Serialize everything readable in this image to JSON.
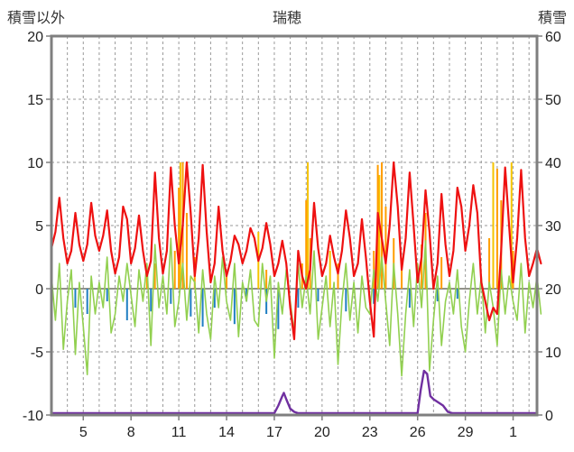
{
  "header": {
    "left_axis_title": "積雪以外",
    "title": "瑞穂",
    "right_axis_title": "積雪"
  },
  "chart_data": {
    "type": "line",
    "title": "瑞穂",
    "grid": true,
    "legend": "none",
    "left_axis": {
      "label": "積雪以外",
      "min": -10,
      "max": 20,
      "ticks": [
        20,
        15,
        10,
        5,
        0,
        -5,
        -10
      ]
    },
    "right_axis": {
      "label": "積雪",
      "min": 0,
      "max": 60,
      "ticks": [
        60,
        50,
        40,
        30,
        20,
        10,
        0
      ]
    },
    "x_axis": {
      "min": 3,
      "max": 33.5,
      "tick_positions": [
        5,
        8,
        11,
        14,
        17,
        20,
        23,
        26,
        29,
        32
      ],
      "tick_labels": [
        "5",
        "8",
        "11",
        "14",
        "17",
        "20",
        "23",
        "26",
        "29",
        "1"
      ],
      "day_gridline_step": 1
    },
    "frame_color": "#7f7f7f",
    "gridline_color": "#9a9a9a",
    "zero_line_color": "#6e6e64",
    "series": [
      {
        "name": "yellow-bars",
        "type": "bar",
        "axis": "left",
        "color": "#f5c400",
        "points": [
          [
            11.1,
            10.0
          ],
          [
            16.0,
            4.5
          ],
          [
            19.1,
            10.0
          ],
          [
            20.5,
            3.0
          ],
          [
            23.6,
            9.0
          ],
          [
            30.75,
            10.0
          ],
          [
            31.9,
            10.0
          ]
        ]
      },
      {
        "name": "orange-bars",
        "type": "bar",
        "axis": "left",
        "color": "#ff9d00",
        "points": [
          [
            9.0,
            1.5
          ],
          [
            9.5,
            2.0
          ],
          [
            10.75,
            3.0
          ],
          [
            11.0,
            8.0
          ],
          [
            11.25,
            10.0
          ],
          [
            11.5,
            6.0
          ],
          [
            12.0,
            2.5
          ],
          [
            14.0,
            1.0
          ],
          [
            16.5,
            1.5
          ],
          [
            18.75,
            2.0
          ],
          [
            19.0,
            7.0
          ],
          [
            19.25,
            4.0
          ],
          [
            21.0,
            2.0
          ],
          [
            23.25,
            3.0
          ],
          [
            23.5,
            9.8
          ],
          [
            23.75,
            10.0
          ],
          [
            24.0,
            6.5
          ],
          [
            24.5,
            4.0
          ],
          [
            25.0,
            2.0
          ],
          [
            26.25,
            3.5
          ],
          [
            26.5,
            6.0
          ],
          [
            27.5,
            2.5
          ],
          [
            30.5,
            4.0
          ],
          [
            31.0,
            9.5
          ],
          [
            31.25,
            7.0
          ],
          [
            32.0,
            3.0
          ]
        ]
      },
      {
        "name": "blue-bars",
        "type": "bar",
        "axis": "left",
        "color": "#1f7ec2",
        "points": [
          [
            4.5,
            -1.5
          ],
          [
            5.25,
            -2.0
          ],
          [
            6.5,
            -1.0
          ],
          [
            7.75,
            -2.5
          ],
          [
            9.25,
            -1.8
          ],
          [
            10.5,
            -1.2
          ],
          [
            11.75,
            -2.2
          ],
          [
            12.5,
            -3.0
          ],
          [
            13.25,
            -1.5
          ],
          [
            14.5,
            -2.8
          ],
          [
            15.25,
            -1.0
          ],
          [
            16.5,
            -2.0
          ],
          [
            17.25,
            -3.2
          ],
          [
            18.5,
            -1.5
          ],
          [
            19.75,
            -1.0
          ],
          [
            21.5,
            -1.8
          ],
          [
            23.25,
            -1.2
          ],
          [
            25.5,
            -1.5
          ],
          [
            27.25,
            -1.0
          ],
          [
            28.5,
            -0.8
          ]
        ]
      },
      {
        "name": "green-line",
        "type": "line",
        "axis": "left",
        "color": "#92d050",
        "width": 1.6,
        "x0": 3,
        "dx": 0.25,
        "values": [
          1.0,
          -2.5,
          2.0,
          -4.8,
          -1.0,
          1.5,
          -5.2,
          0.5,
          -3.0,
          -6.8,
          1.0,
          -2.0,
          0.5,
          -1.5,
          2.5,
          -3.5,
          -2.0,
          1.0,
          -1.0,
          2.0,
          -0.5,
          -3.0,
          1.5,
          -1.0,
          2.0,
          -4.5,
          3.5,
          -1.5,
          1.0,
          -2.0,
          4.0,
          -3.0,
          -1.0,
          2.0,
          -2.5,
          1.0,
          0.5,
          -3.5,
          1.5,
          -2.0,
          -4.0,
          1.0,
          -1.5,
          2.5,
          -1.0,
          -2.5,
          2.0,
          -3.8,
          0.5,
          -1.0,
          1.5,
          -2.5,
          -3.0,
          2.0,
          -1.0,
          1.0,
          -5.5,
          0.5,
          -2.0,
          1.5,
          -1.0,
          -3.5,
          2.0,
          -1.5,
          1.0,
          -2.0,
          3.0,
          -4.0,
          -1.5,
          1.0,
          -3.0,
          0.5,
          -6.0,
          -1.0,
          2.0,
          -2.5,
          0.5,
          -3.5,
          1.0,
          -1.5,
          -2.0,
          1.5,
          -1.0,
          2.5,
          -1.0,
          -4.5,
          2.0,
          -2.0,
          -6.9,
          -2.0,
          1.5,
          -3.0,
          2.0,
          -1.5,
          3.8,
          -6.5,
          -2.5,
          1.0,
          -4.5,
          -1.0,
          0.5,
          -2.0,
          1.5,
          -3.0,
          -5.0,
          -1.0,
          2.0,
          -2.0,
          1.0,
          -3.5,
          0.5,
          -1.5,
          -4.5,
          1.5,
          -2.0,
          1.0,
          -1.0,
          -2.5,
          2.0,
          -3.5,
          0.5,
          -1.5,
          1.0,
          -2.0
        ]
      },
      {
        "name": "red-line",
        "type": "line",
        "axis": "left",
        "color": "#ee1111",
        "width": 2.2,
        "x0": 3,
        "dx": 0.25,
        "values": [
          3.2,
          4.5,
          7.2,
          4.0,
          2.0,
          3.0,
          6.0,
          3.5,
          2.2,
          3.5,
          6.8,
          4.2,
          3.0,
          4.2,
          6.2,
          3.0,
          1.2,
          2.5,
          6.5,
          5.5,
          2.0,
          3.2,
          5.8,
          3.0,
          1.0,
          2.2,
          9.2,
          4.0,
          1.2,
          3.0,
          9.6,
          5.0,
          2.0,
          5.0,
          10.0,
          6.0,
          1.0,
          4.0,
          9.8,
          4.5,
          0.5,
          2.0,
          6.5,
          3.0,
          1.0,
          2.2,
          4.2,
          3.5,
          2.0,
          3.0,
          4.8,
          4.0,
          2.2,
          3.2,
          5.2,
          3.5,
          1.0,
          2.0,
          3.8,
          2.0,
          -1.5,
          -4.0,
          3.0,
          1.0,
          0.0,
          1.5,
          6.8,
          3.2,
          1.0,
          2.0,
          4.2,
          2.5,
          1.2,
          3.0,
          6.2,
          4.0,
          1.0,
          2.0,
          5.5,
          2.5,
          -1.0,
          -3.8,
          6.0,
          4.0,
          2.0,
          5.0,
          10.0,
          6.5,
          1.5,
          4.0,
          9.2,
          5.0,
          0.5,
          2.5,
          7.8,
          4.5,
          0.0,
          2.0,
          7.5,
          3.5,
          1.0,
          3.0,
          8.0,
          6.5,
          3.0,
          5.0,
          8.2,
          6.0,
          0.5,
          -1.0,
          -2.5,
          -1.5,
          -2.0,
          3.0,
          9.6,
          5.0,
          0.5,
          4.0,
          9.4,
          4.0,
          1.0,
          2.0,
          3.2,
          2.0
        ]
      },
      {
        "name": "purple-line",
        "type": "line",
        "axis": "right",
        "color": "#7030a0",
        "width": 2.4,
        "points": [
          [
            3,
            0
          ],
          [
            17.0,
            0
          ],
          [
            17.25,
            1.5
          ],
          [
            17.5,
            3.0
          ],
          [
            17.6,
            3.5
          ],
          [
            17.75,
            2.5
          ],
          [
            18.0,
            1.0
          ],
          [
            18.25,
            0.5
          ],
          [
            18.5,
            0
          ],
          [
            26.0,
            0
          ],
          [
            26.2,
            4.0
          ],
          [
            26.4,
            7.0
          ],
          [
            26.6,
            6.5
          ],
          [
            26.8,
            3.0
          ],
          [
            27.0,
            2.5
          ],
          [
            27.3,
            2.0
          ],
          [
            27.6,
            1.5
          ],
          [
            27.9,
            0.5
          ],
          [
            28.2,
            0
          ],
          [
            33.5,
            0
          ]
        ]
      }
    ]
  }
}
